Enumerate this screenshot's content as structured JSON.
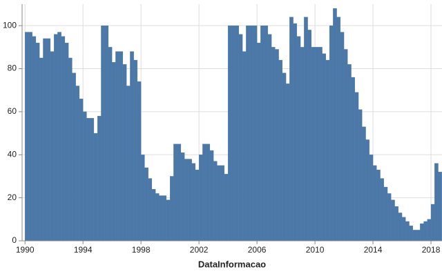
{
  "chart_data": {
    "type": "bar",
    "x_label": "DataInformacao",
    "x": [
      1990,
      1990.25,
      1990.5,
      1990.75,
      1991,
      1991.25,
      1991.5,
      1991.75,
      1992,
      1992.25,
      1992.5,
      1992.75,
      1993,
      1993.25,
      1993.5,
      1993.75,
      1994,
      1994.25,
      1994.5,
      1994.75,
      1995,
      1995.25,
      1995.5,
      1995.75,
      1996,
      1996.25,
      1996.5,
      1996.75,
      1997,
      1997.25,
      1997.5,
      1997.75,
      1998,
      1998.25,
      1998.5,
      1998.75,
      1999,
      1999.25,
      1999.5,
      1999.75,
      2000,
      2000.25,
      2000.5,
      2000.75,
      2001,
      2001.25,
      2001.5,
      2001.75,
      2002,
      2002.25,
      2002.5,
      2002.75,
      2003,
      2003.25,
      2003.5,
      2003.75,
      2004,
      2004.25,
      2004.5,
      2004.75,
      2005,
      2005.25,
      2005.5,
      2005.75,
      2006,
      2006.25,
      2006.5,
      2006.75,
      2007,
      2007.25,
      2007.5,
      2007.75,
      2008,
      2008.25,
      2008.5,
      2008.75,
      2009,
      2009.25,
      2009.5,
      2009.75,
      2010,
      2010.25,
      2010.5,
      2010.75,
      2011,
      2011.25,
      2011.5,
      2011.75,
      2012,
      2012.25,
      2012.5,
      2012.75,
      2013,
      2013.25,
      2013.5,
      2013.75,
      2014,
      2014.25,
      2014.5,
      2014.75,
      2015,
      2015.25,
      2015.5,
      2015.75,
      2016,
      2016.25,
      2016.5,
      2016.75,
      2017,
      2017.25,
      2017.5,
      2017.75,
      2018,
      2018.25,
      2018.5
    ],
    "values": [
      97,
      97,
      95,
      92,
      85,
      94,
      94,
      88,
      96,
      97,
      95,
      92,
      85,
      78,
      72,
      66,
      60,
      57,
      57,
      50,
      58,
      100,
      100,
      90,
      83,
      88,
      88,
      82,
      72,
      88,
      84,
      74,
      40,
      34,
      29,
      24,
      22,
      21,
      21,
      19,
      30,
      45,
      45,
      41,
      38,
      38,
      36,
      33,
      40,
      45,
      45,
      42,
      37,
      35,
      35,
      31,
      100,
      100,
      100,
      96,
      88,
      100,
      100,
      100,
      92,
      100,
      100,
      96,
      90,
      89,
      84,
      78,
      73,
      104,
      101,
      95,
      90,
      104,
      98,
      90,
      90,
      90,
      87,
      84,
      100,
      108,
      104,
      97,
      89,
      82,
      76,
      69,
      61,
      53,
      47,
      40,
      35,
      33,
      29,
      25,
      22,
      19,
      16,
      13,
      11,
      9,
      7,
      5,
      5,
      8,
      9,
      10,
      17,
      36,
      32
    ],
    "color": "#4c78a8",
    "xlim": [
      1989.8,
      2018.76
    ],
    "xticks": [
      1990,
      1994,
      1998,
      2002,
      2006,
      2010,
      2014,
      2018
    ],
    "ylim": [
      0,
      110
    ],
    "yticks": [
      0,
      20,
      40,
      60,
      80,
      100
    ],
    "grid": true
  }
}
